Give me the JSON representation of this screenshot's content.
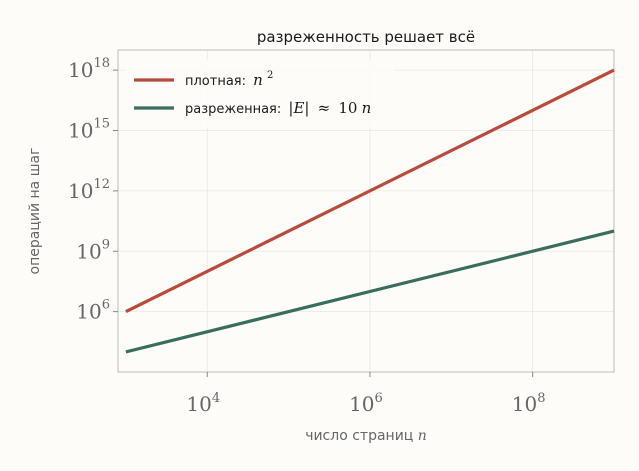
{
  "chart_data": {
    "type": "line",
    "title": "разреженность решает всё",
    "xlabel": {
      "text": "число страниц",
      "var": "n"
    },
    "ylabel": "операций на шаг",
    "xscale": "log",
    "yscale": "log",
    "xlim": [
      800,
      1000000000
    ],
    "ylim": [
      1000,
      10000000000000000000
    ],
    "grid": true,
    "legend_position": "top-left",
    "x_ticks": [
      {
        "base": "10",
        "exp": "4",
        "value": 10000
      },
      {
        "base": "10",
        "exp": "6",
        "value": 1000000
      },
      {
        "base": "10",
        "exp": "8",
        "value": 100000000
      }
    ],
    "y_ticks": [
      {
        "base": "10",
        "exp": "6",
        "value": 1000000
      },
      {
        "base": "10",
        "exp": "9",
        "value": 1000000000
      },
      {
        "base": "10",
        "exp": "12",
        "value": 1000000000000
      },
      {
        "base": "10",
        "exp": "15",
        "value": 1000000000000000
      },
      {
        "base": "10",
        "exp": "18",
        "value": 1000000000000000000
      }
    ],
    "series": [
      {
        "name": "плотная:",
        "formula_var": "n",
        "formula_exp": "2",
        "color": "#b94a3c",
        "x": [
          1000,
          1000000000
        ],
        "y": [
          1000000,
          1000000000000000000
        ]
      },
      {
        "name": "разреженная:",
        "formula_lhs": "|E|",
        "formula_rel": "≈",
        "formula_rhs": "10",
        "formula_var": "n",
        "color": "#3a6e5c",
        "x": [
          1000,
          1000000000
        ],
        "y": [
          10000,
          10000000000
        ]
      }
    ]
  }
}
